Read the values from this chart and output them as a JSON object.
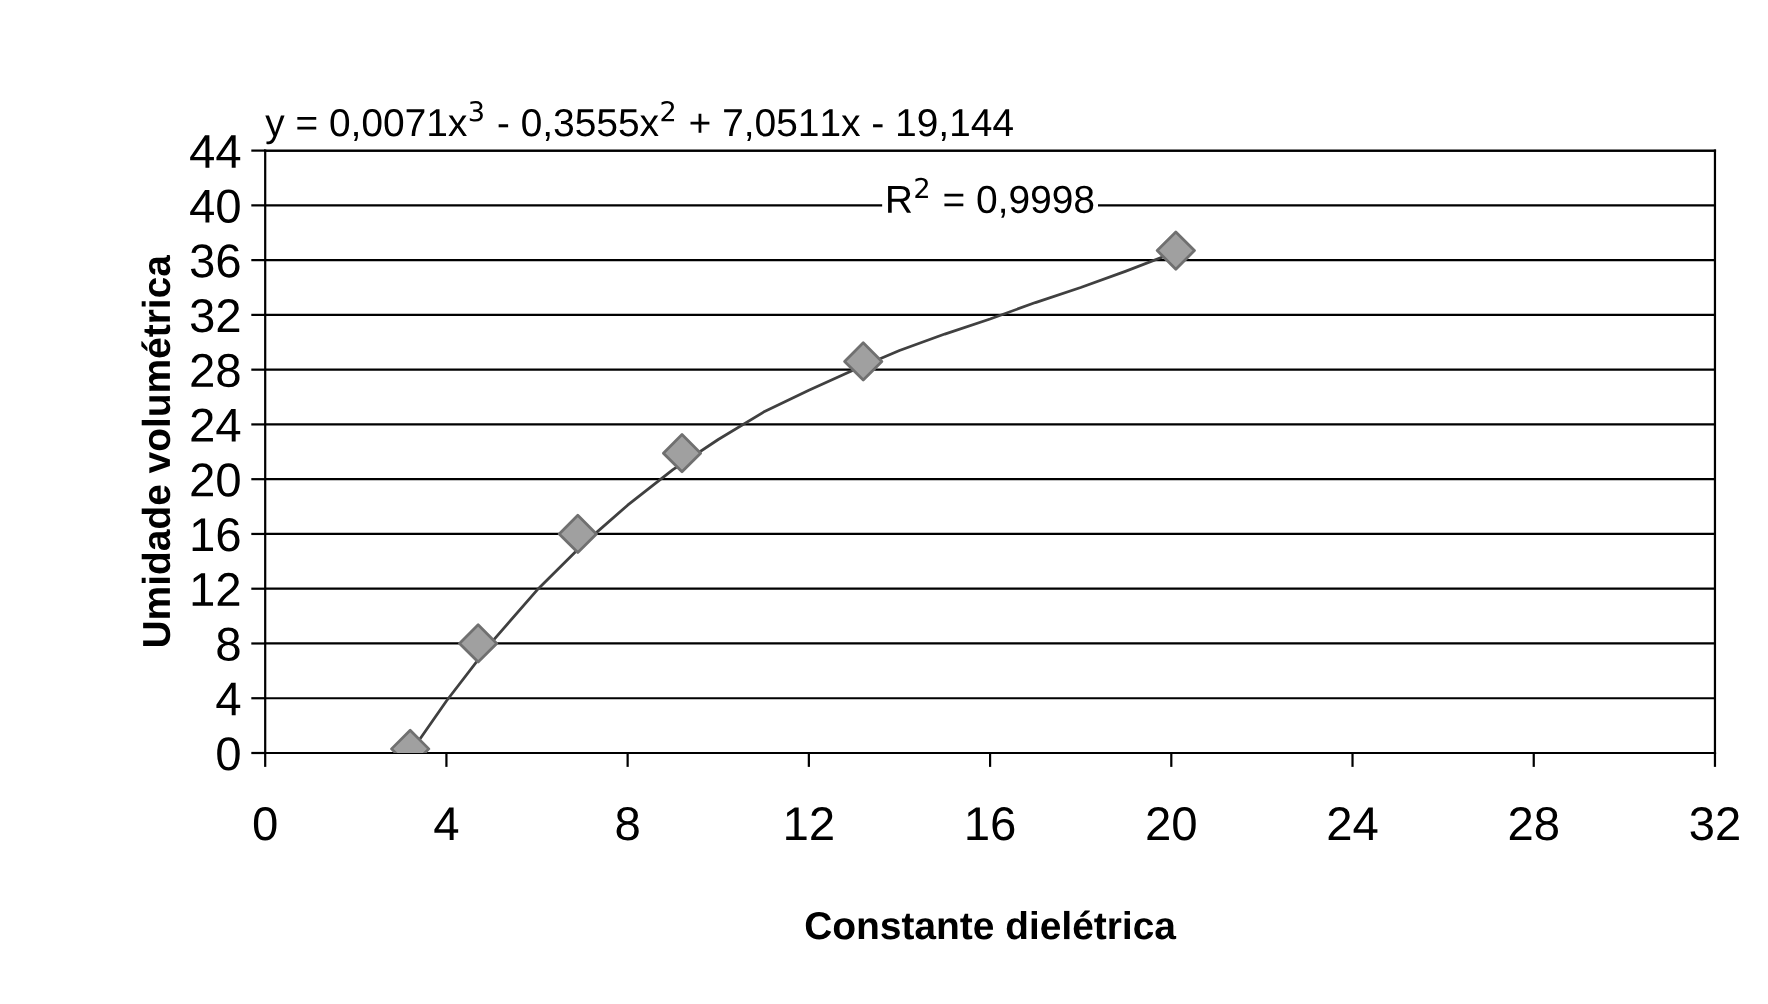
{
  "chart_data": {
    "type": "scatter",
    "xlabel": "Constante dielétrica",
    "ylabel": "Umidade volumétrica",
    "annotations": [
      "y = 0,0071x$^{3}$ - 0,3555x$^{2}$ + 7,0511x - 19,144",
      "R$^{2}$ = 0,9998"
    ],
    "series": [
      {
        "color": "#a0a0a0",
        "marker": "diamond",
        "x": [
          3.2,
          4.7,
          6.9,
          9.2,
          13.2,
          20.1
        ],
        "values": [
          0.3,
          8.0,
          16.0,
          21.9,
          28.6,
          36.7
        ]
      },
      {
        "type": "line",
        "color": "#404040",
        "marker": "none",
        "line_style": "solid",
        "x": [
          3.2,
          4,
          5,
          6,
          7,
          8,
          9,
          10,
          11,
          12,
          13,
          14,
          15,
          16,
          17,
          18,
          19,
          20.1
        ],
        "values": [
          0.0,
          3.8,
          8.1,
          11.9,
          15.2,
          18.1,
          20.7,
          22.9,
          24.9,
          26.5,
          28.0,
          29.4,
          30.6,
          31.7,
          32.9,
          34.0,
          35.2,
          36.6
        ]
      }
    ],
    "xlim": [
      0,
      32
    ],
    "xticks": [
      0,
      4,
      8,
      12,
      16,
      20,
      24,
      28,
      32
    ],
    "ylim": [
      0,
      44
    ],
    "yticks": [
      0,
      4,
      8,
      12,
      16,
      20,
      24,
      28,
      32,
      36,
      40,
      44
    ],
    "grid": "y",
    "legend": false
  }
}
